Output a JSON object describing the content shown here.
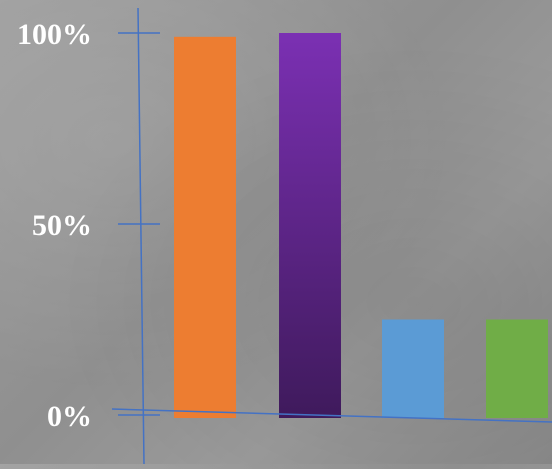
{
  "chart_data": {
    "type": "bar",
    "categories": [
      "",
      "",
      "",
      ""
    ],
    "values": [
      99,
      100,
      25,
      25
    ],
    "colors": [
      "#ED7D31",
      "#7030A0",
      "#5B9BD5",
      "#70AD47"
    ],
    "ylim": [
      0,
      100
    ],
    "yticks": [
      {
        "value": 0,
        "label": "0%"
      },
      {
        "value": 50,
        "label": "50%"
      },
      {
        "value": 100,
        "label": "100%"
      }
    ],
    "axis_color": "#4472C4",
    "label_color": "#FFFFFF",
    "grid": false,
    "legend": "none"
  }
}
